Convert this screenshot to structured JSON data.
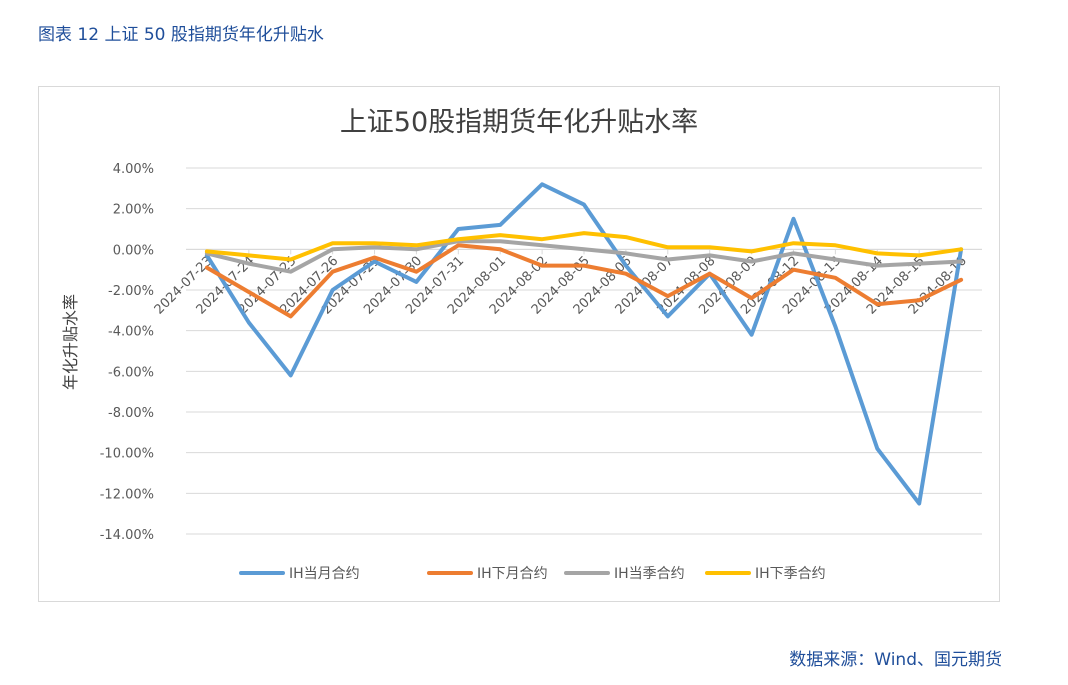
{
  "figure_title": "图表 12  上证 50 股指期货年化升贴水",
  "source": "数据来源：Wind、国元期货",
  "colors": {
    "title": "#1f4e9a",
    "series": [
      "#5b9bd5",
      "#ed7d31",
      "#a5a5a5",
      "#ffc000"
    ],
    "grid": "#d9d9d9",
    "axis_text": "#595959"
  },
  "chart_data": {
    "type": "line",
    "title": "上证50股指期货年化升贴水率",
    "ylabel": "年化升贴水率",
    "xlabel": "",
    "ylim": [
      -14,
      4
    ],
    "yticks": [
      "4.00%",
      "2.00%",
      "0.00%",
      "-2.00%",
      "-4.00%",
      "-6.00%",
      "-8.00%",
      "-10.00%",
      "-12.00%",
      "-14.00%"
    ],
    "ytick_values": [
      4,
      2,
      0,
      -2,
      -4,
      -6,
      -8,
      -10,
      -12,
      -14
    ],
    "grid": true,
    "legend_position": "bottom",
    "categories": [
      "2024-07-23",
      "2024-07-24",
      "2024-07-25",
      "2024-07-26",
      "2024-07-29",
      "2024-07-30",
      "2024-07-31",
      "2024-08-01",
      "2024-08-02",
      "2024-08-05",
      "2024-08-06",
      "2024-08-07",
      "2024-08-08",
      "2024-08-09",
      "2024-08-12",
      "2024-08-13",
      "2024-08-14",
      "2024-08-15",
      "2024-08-16"
    ],
    "series": [
      {
        "name": "IH当月合约",
        "values": [
          -0.3,
          -3.6,
          -6.2,
          -2.0,
          -0.6,
          -1.6,
          1.0,
          1.2,
          3.2,
          2.2,
          -0.8,
          -3.3,
          -1.2,
          -4.2,
          1.5,
          -3.8,
          -9.8,
          -12.5,
          0.0
        ]
      },
      {
        "name": "IH下月合约",
        "values": [
          -0.9,
          -2.1,
          -3.3,
          -1.1,
          -0.4,
          -1.1,
          0.2,
          0.0,
          -0.8,
          -0.8,
          -1.2,
          -2.3,
          -1.2,
          -2.4,
          -1.0,
          -1.4,
          -2.7,
          -2.5,
          -1.5
        ]
      },
      {
        "name": "IH当季合约",
        "values": [
          -0.2,
          -0.7,
          -1.1,
          0.0,
          0.1,
          0.0,
          0.4,
          0.4,
          0.2,
          0.0,
          -0.2,
          -0.5,
          -0.3,
          -0.6,
          -0.2,
          -0.5,
          -0.8,
          -0.7,
          -0.6
        ]
      },
      {
        "name": "IH下季合约",
        "values": [
          -0.1,
          -0.3,
          -0.5,
          0.3,
          0.3,
          0.2,
          0.5,
          0.7,
          0.5,
          0.8,
          0.6,
          0.1,
          0.1,
          -0.1,
          0.3,
          0.2,
          -0.2,
          -0.3,
          0.0
        ]
      }
    ]
  }
}
